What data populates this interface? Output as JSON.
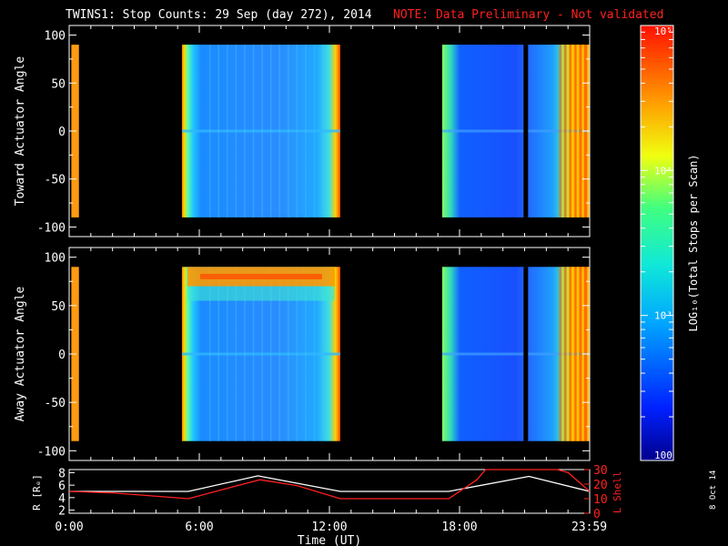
{
  "header": {
    "title": "TWINS1: Stop Counts: 29 Sep (day 272), 2014",
    "note": "NOTE: Data Preliminary - Not validated"
  },
  "side_stamp": "8 Oct 14",
  "colors": {
    "background": "#000000",
    "axis": "#ffffff",
    "r_line": "#ffffff",
    "l_line": "#ff2020",
    "note_text": "#ff2020"
  },
  "chart_data": [
    {
      "type": "heatmap",
      "ylabel": "Toward Actuator Angle",
      "x_unit": "hours UT",
      "xlim": [
        0,
        24
      ],
      "ylim": [
        -110,
        110
      ],
      "yticks": [
        "100",
        "50",
        "0",
        "-50",
        "-100"
      ],
      "angle_range": [
        -90,
        90
      ],
      "segments": [
        {
          "t_start": 0.1,
          "t_end": 0.45,
          "level": "high (~1e4)"
        },
        {
          "t_start": 5.2,
          "t_end": 12.5,
          "level": "mostly ~1e3, edges high"
        },
        {
          "t_start": 17.2,
          "t_end": 24.0,
          "level": "~1e2 to 1e3 with high spikes near 22:30-24:00"
        }
      ]
    },
    {
      "type": "heatmap",
      "ylabel": "Away Actuator Angle",
      "x_unit": "hours UT",
      "xlim": [
        0,
        24
      ],
      "ylim": [
        -110,
        110
      ],
      "yticks": [
        "100",
        "50",
        "0",
        "-50",
        "-100"
      ],
      "angle_range": [
        -90,
        90
      ],
      "segments": [
        {
          "t_start": 0.1,
          "t_end": 0.45,
          "level": "high (~1e4)"
        },
        {
          "t_start": 5.2,
          "t_end": 12.5,
          "level": "~1e3, high band at 70-90 deg"
        },
        {
          "t_start": 17.2,
          "t_end": 24.0,
          "level": "~1e2 to 1e3 with high spikes near 22:30-24:00"
        }
      ]
    },
    {
      "type": "line",
      "xlabel": "Time (UT)",
      "xticks": [
        "0:00",
        "6:00",
        "12:00",
        "18:00",
        "23:59"
      ],
      "xtick_hours": [
        0,
        6,
        12,
        18,
        23.98
      ],
      "left_axis": {
        "label": "R [Rₑ]",
        "ticks": [
          "2",
          "4",
          "6",
          "8"
        ],
        "range": [
          1.5,
          8.5
        ]
      },
      "right_axis": {
        "label": "L Shell",
        "ticks": [
          "0",
          "10",
          "20",
          "30"
        ],
        "range": [
          0,
          30
        ]
      },
      "series": [
        {
          "axis": "left",
          "color": "#ffffff",
          "x": [
            0,
            5.5,
            8.7,
            12.5,
            17.5,
            21.2,
            24
          ],
          "y": [
            5.0,
            5.0,
            7.5,
            5.0,
            5.0,
            7.4,
            5.0
          ]
        },
        {
          "axis": "right",
          "color": "#ff2020",
          "x": [
            0,
            2.0,
            5.5,
            7.5,
            8.8,
            10.5,
            12.5,
            14.0,
            17.5,
            18.8,
            19.2,
            22.5,
            23.0,
            24.0
          ],
          "y": [
            15,
            14,
            10,
            18,
            23,
            19,
            10,
            10,
            10,
            23,
            30,
            30,
            28,
            15
          ]
        }
      ]
    },
    {
      "type": "colorbar",
      "ylabel": "LOG₁₀(Total Stops per Scan)",
      "tick_labels": [
        "100",
        "10³",
        "10⁴",
        "10⁵"
      ],
      "tick_values": [
        100,
        1000,
        10000,
        100000
      ],
      "range": [
        100,
        100000
      ],
      "scale": "log"
    }
  ]
}
